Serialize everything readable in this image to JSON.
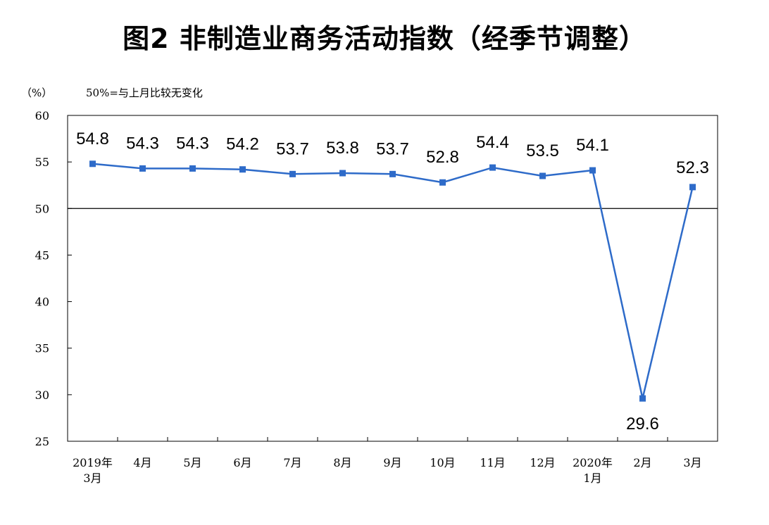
{
  "title": "图2 非制造业商务活动指数（经季节调整）",
  "y_unit": "（%）",
  "note": "50%=与上月比较无变化",
  "colors": {
    "line": "#2e6bc9",
    "marker": "#2e6bc9",
    "axis": "#000000",
    "reference": "#000000"
  },
  "chart_data": {
    "type": "line",
    "categories": [
      [
        "2019年",
        "3月"
      ],
      [
        "4月"
      ],
      [
        "5月"
      ],
      [
        "6月"
      ],
      [
        "7月"
      ],
      [
        "8月"
      ],
      [
        "9月"
      ],
      [
        "10月"
      ],
      [
        "11月"
      ],
      [
        "12月"
      ],
      [
        "2020年",
        "1月"
      ],
      [
        "2月"
      ],
      [
        "3月"
      ]
    ],
    "series": [
      {
        "values": [
          54.8,
          54.3,
          54.3,
          54.2,
          53.7,
          53.8,
          53.7,
          52.8,
          54.4,
          53.5,
          54.1,
          29.6,
          52.3
        ]
      }
    ],
    "data_labels": [
      "54.8",
      "54.3",
      "54.3",
      "54.2",
      "53.7",
      "53.8",
      "53.7",
      "52.8",
      "54.4",
      "53.5",
      "54.1",
      "29.6",
      "52.3"
    ],
    "ylim": [
      25,
      60
    ],
    "yticks": [
      60,
      55,
      50,
      45,
      40,
      35,
      30,
      25
    ],
    "reference_line": 50,
    "grid": false,
    "legend": "none"
  }
}
